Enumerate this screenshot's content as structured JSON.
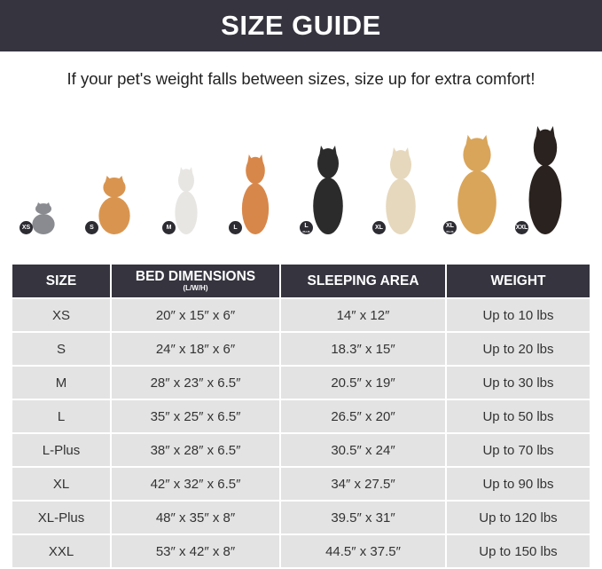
{
  "title": "SIZE GUIDE",
  "subtitle": "If your pet's weight falls between sizes, size up for extra comfort!",
  "pets": [
    {
      "badge": "XS",
      "plus": "",
      "animal": "gray cat",
      "color": "#8a8b90"
    },
    {
      "badge": "S",
      "plus": "",
      "animal": "pomeranian",
      "color": "#d99550"
    },
    {
      "badge": "M",
      "plus": "",
      "animal": "french bulldog",
      "color": "#e8e6e3"
    },
    {
      "badge": "L",
      "plus": "",
      "animal": "shiba inu",
      "color": "#d8874a"
    },
    {
      "badge": "L",
      "plus": "PLUS",
      "animal": "border collie",
      "color": "#2b2b2b"
    },
    {
      "badge": "XL",
      "plus": "",
      "animal": "labrador",
      "color": "#e6d8bd"
    },
    {
      "badge": "XL",
      "plus": "PLUS",
      "animal": "golden retriever",
      "color": "#d9a55a"
    },
    {
      "badge": "XXL",
      "plus": "",
      "animal": "doberman",
      "color": "#2a221e"
    }
  ],
  "table": {
    "headers": {
      "size": "SIZE",
      "dims": "BED DIMENSIONS",
      "dims_sub": "(L/W/H)",
      "area": "SLEEPING AREA",
      "weight": "WEIGHT"
    },
    "rows": [
      [
        "XS",
        "20″ x 15″ x 6″",
        "14″ x 12″",
        "Up to 10 lbs"
      ],
      [
        "S",
        "24″ x 18″ x 6″",
        "18.3″ x 15″",
        "Up to 20 lbs"
      ],
      [
        "M",
        "28″ x 23″ x 6.5″",
        "20.5″ x 19″",
        "Up to 30 lbs"
      ],
      [
        "L",
        "35″ x 25″ x 6.5″",
        "26.5″ x 20″",
        "Up to 50 lbs"
      ],
      [
        "L-Plus",
        "38″ x 28″ x 6.5″",
        "30.5″ x 24″",
        "Up to 70 lbs"
      ],
      [
        "XL",
        "42″ x 32″ x 6.5″",
        "34″ x 27.5″",
        "Up to 90 lbs"
      ],
      [
        "XL-Plus",
        "48″ x 35″ x 8″",
        "39.5″ x 31″",
        "Up to 120 lbs"
      ],
      [
        "XXL",
        "53″ x 42″ x 8″",
        "44.5″ x 37.5″",
        "Up to 150 lbs"
      ]
    ]
  }
}
